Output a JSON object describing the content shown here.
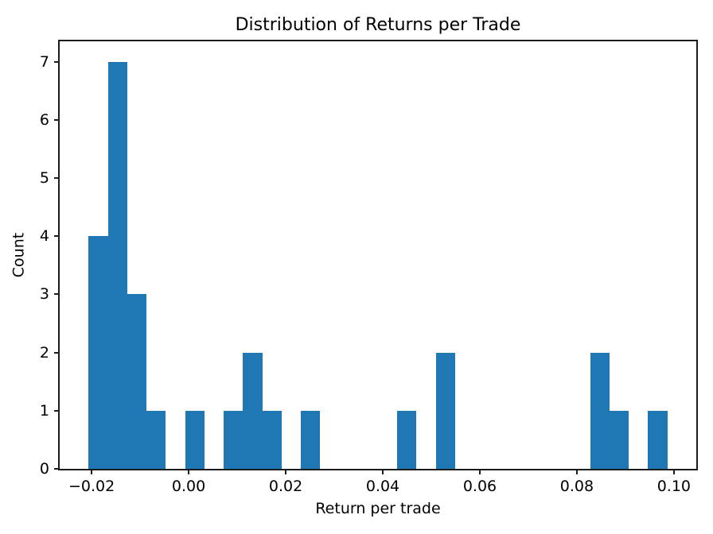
{
  "chart_data": {
    "type": "histogram",
    "title": "Distribution of Returns per Trade",
    "xlabel": "Return per trade",
    "ylabel": "Count",
    "bar_color": "#1f77b4",
    "axis_color": "#1c1c1c",
    "grid": false,
    "legend": "none",
    "bins": 30,
    "bin_edges": [
      -0.02062,
      -0.01664,
      -0.01267,
      -0.00869,
      -0.00472,
      -0.00074,
      0.00323,
      0.00721,
      0.01118,
      0.01516,
      0.01914,
      0.02311,
      0.02709,
      0.03106,
      0.03504,
      0.03901,
      0.04299,
      0.04696,
      0.05094,
      0.05491,
      0.05889,
      0.06287,
      0.06684,
      0.07082,
      0.07479,
      0.07877,
      0.08274,
      0.08672,
      0.09069,
      0.09467,
      0.09865
    ],
    "counts": [
      4,
      7,
      3,
      1,
      0,
      1,
      0,
      1,
      2,
      1,
      0,
      1,
      0,
      0,
      0,
      0,
      1,
      0,
      2,
      0,
      0,
      0,
      0,
      0,
      0,
      0,
      2,
      1,
      0,
      1
    ],
    "xlim": [
      -0.02658,
      0.10461
    ],
    "ylim": [
      0,
      7.35
    ],
    "xticks": [
      {
        "value": -0.02,
        "label": "−0.02"
      },
      {
        "value": 0.0,
        "label": "0.00"
      },
      {
        "value": 0.02,
        "label": "0.02"
      },
      {
        "value": 0.04,
        "label": "0.04"
      },
      {
        "value": 0.06,
        "label": "0.06"
      },
      {
        "value": 0.08,
        "label": "0.08"
      },
      {
        "value": 0.1,
        "label": "0.10"
      }
    ],
    "yticks": [
      {
        "value": 0,
        "label": "0"
      },
      {
        "value": 1,
        "label": "1"
      },
      {
        "value": 2,
        "label": "2"
      },
      {
        "value": 3,
        "label": "3"
      },
      {
        "value": 4,
        "label": "4"
      },
      {
        "value": 5,
        "label": "5"
      },
      {
        "value": 6,
        "label": "6"
      },
      {
        "value": 7,
        "label": "7"
      }
    ]
  }
}
